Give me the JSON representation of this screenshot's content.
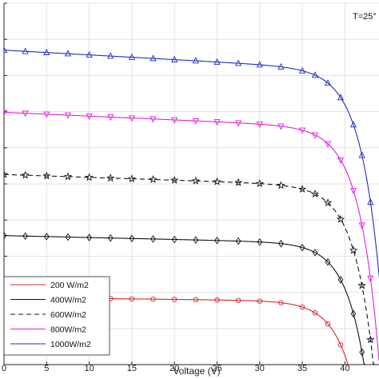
{
  "chart_data": {
    "type": "line",
    "title": "",
    "xlabel": "Voltage (V)",
    "ylabel": "",
    "annotation": "T=25°",
    "xlim": [
      0,
      44
    ],
    "ylim": [
      0,
      10
    ],
    "x_ticks": [
      0,
      5,
      10,
      15,
      20,
      25,
      30,
      35,
      40
    ],
    "x_tick_labels": [
      "0",
      "5",
      "10",
      "15",
      "20",
      "25",
      "30",
      "35",
      "40"
    ],
    "y_ticks": [
      0,
      1,
      2,
      3,
      4,
      5,
      6,
      7,
      8,
      9,
      10
    ],
    "y_tick_labels": [],
    "grid": true,
    "legend_position": "bottom-left",
    "marker_x": [
      0,
      2.5,
      5,
      7.5,
      10,
      12.5,
      15,
      17.5,
      20,
      22.5,
      25,
      27.5,
      30,
      32.5,
      35,
      36.5,
      38,
      39.5,
      41,
      42,
      43
    ],
    "series": [
      {
        "name": "200 W/m2",
        "color": "#d62728",
        "dash": "solid",
        "marker": "circle",
        "isc": 1.86,
        "voc": 40.5
      },
      {
        "name": "400W/m2",
        "color": "#111111",
        "dash": "solid",
        "marker": "diamond",
        "isc": 3.57,
        "voc": 42.4
      },
      {
        "name": "600W/m2",
        "color": "#111111",
        "dash": "dashed",
        "marker": "star",
        "isc": 5.26,
        "voc": 43.5
      },
      {
        "name": "800W/m2",
        "color": "#e020e0",
        "dash": "solid",
        "marker": "triangle-down",
        "isc": 6.98,
        "voc": 44.2
      },
      {
        "name": "1000W/m2",
        "color": "#1f2fbf",
        "dash": "solid",
        "marker": "triangle-up",
        "isc": 8.7,
        "voc": 45.0
      }
    ]
  }
}
